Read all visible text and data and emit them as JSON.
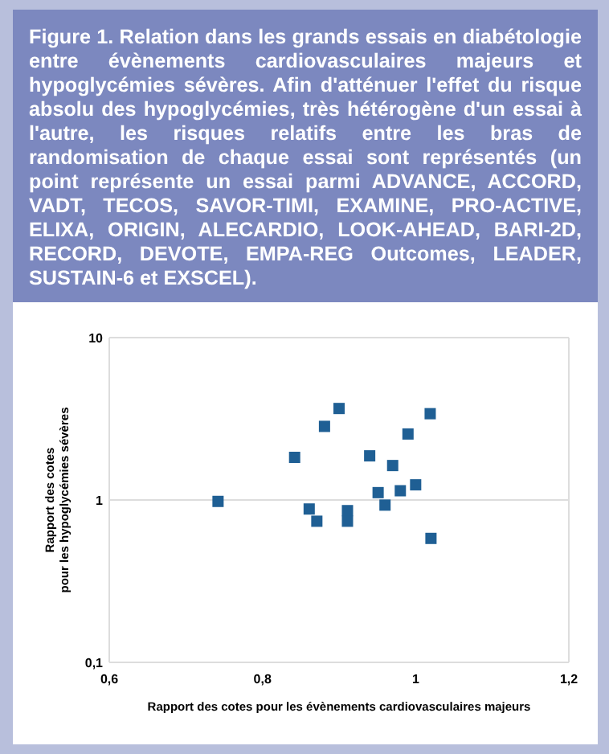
{
  "chart_data": {
    "type": "scatter",
    "title": "Figure 1.  Relation dans les grands essais en diabétologie entre évènements cardiovasculaires majeurs et hypoglycémies sévères. Afin d'atténuer l'effet du risque absolu des hypoglycémies, très hétérogène d'un essai à l'autre, les risques relatifs entre les bras de randomisation de chaque essai sont représentés (un point représente un essai parmi ADVANCE, ACCORD, VADT, TECOS, SAVOR-TIMI, EXAMINE, PRO-ACTIVE, ELIXA, ORIGIN, ALECARDIO, LOOK-AHEAD, BARI-2D, RECORD, DEVOTE, EMPA-REG Outcomes, LEADER, SUSTAIN-6 et EXSCEL).",
    "xlabel": "Rapport des cotes pour les évènements cardiovasculaires majeurs",
    "ylabel": "Rapport des cotes\npour les hypoglycémies sévères",
    "series": [
      {
        "color": "#1f5f94",
        "x": [
          0.742,
          0.842,
          0.881,
          0.9,
          1.019,
          0.99,
          0.94,
          0.97,
          1.0,
          0.98,
          0.951,
          0.96,
          0.861,
          0.911,
          0.871,
          0.911,
          1.02
        ],
        "values": [
          0.98,
          1.83,
          2.84,
          3.66,
          3.4,
          2.55,
          1.87,
          1.63,
          1.24,
          1.14,
          1.11,
          0.93,
          0.88,
          0.86,
          0.74,
          0.74,
          0.58
        ]
      }
    ],
    "xlim": [
      0.6,
      1.2
    ],
    "xticks": [
      {
        "value": 0.6,
        "label": "0,6"
      },
      {
        "value": 0.8,
        "label": "0,8"
      },
      1,
      {
        "value": 1.2,
        "label": "1,2"
      }
    ],
    "ylim": [
      0.1,
      10
    ],
    "yticks": [
      {
        "value": 0.1,
        "label": "0,1"
      },
      1,
      10
    ],
    "log": "y",
    "grid": "y",
    "marker": "square"
  }
}
